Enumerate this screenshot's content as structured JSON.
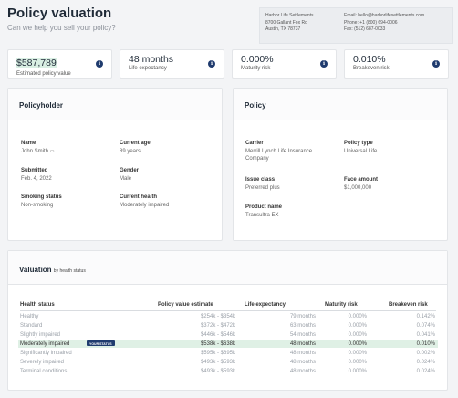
{
  "header": {
    "title": "Policy valuation",
    "subtitle": "Can we help you sell your policy?"
  },
  "contact": {
    "company": "Harbor Life Settlements",
    "address1": "8700 Gallant Fox Rd",
    "address2": "Austin, TX 78737",
    "email": "Email: hello@harborlifesettlements.com",
    "phone": "Phone: +1 (800) 694-0006",
    "fax": "Fax: (512) 687-0033"
  },
  "kpis": [
    {
      "value": "$587,789",
      "label": "Estimated policy value",
      "icon": "info-icon"
    },
    {
      "value": "48 months",
      "label": "Life expectancy",
      "icon": "info-icon"
    },
    {
      "value": "0.000%",
      "label": "Maturity risk",
      "icon": "info-icon"
    },
    {
      "value": "0.010%",
      "label": "Breakeven risk",
      "icon": "info-icon"
    }
  ],
  "policyholder": {
    "heading": "Policyholder",
    "name_label": "Name",
    "name_value": "John Smith",
    "age_label": "Current age",
    "age_value": "89 years",
    "submitted_label": "Submitted",
    "submitted_value": "Feb. 4, 2022",
    "gender_label": "Gender",
    "gender_value": "Male",
    "smoking_label": "Smoking status",
    "smoking_value": "Non-smoking",
    "health_label": "Current health",
    "health_value": "Moderately impaired"
  },
  "policy": {
    "heading": "Policy",
    "carrier_label": "Carrier",
    "carrier_value": "Merrill Lynch Life Insurance Company",
    "type_label": "Policy type",
    "type_value": "Universal Life",
    "issue_label": "Issue class",
    "issue_value": "Preferred plus",
    "face_label": "Face amount",
    "face_value": "$1,000,000",
    "product_label": "Product name",
    "product_value": "Transultra EX"
  },
  "valuation": {
    "heading": "Valuation",
    "heading_small": "by health status",
    "columns": [
      "Health status",
      "Policy value estimate",
      "Life expectancy",
      "Maturity risk",
      "Breakeven risk"
    ],
    "your_status_badge": "YOUR STATUS",
    "rows": [
      {
        "status": "Healthy",
        "estimate": "$254k - $354k",
        "life": "79 months",
        "maturity": "0.000%",
        "breakeven": "0.142%"
      },
      {
        "status": "Standard",
        "estimate": "$372k - $472k",
        "life": "63 months",
        "maturity": "0.000%",
        "breakeven": "0.074%"
      },
      {
        "status": "Slightly impaired",
        "estimate": "$446k - $546k",
        "life": "54 months",
        "maturity": "0.000%",
        "breakeven": "0.041%"
      },
      {
        "status": "Moderately impaired",
        "estimate": "$538k - $638k",
        "life": "48 months",
        "maturity": "0.000%",
        "breakeven": "0.010%"
      },
      {
        "status": "Significantly impaired",
        "estimate": "$595k - $695k",
        "life": "48 months",
        "maturity": "0.000%",
        "breakeven": "0.002%"
      },
      {
        "status": "Severely impaired",
        "estimate": "$493k - $593k",
        "life": "48 months",
        "maturity": "0.000%",
        "breakeven": "0.024%"
      },
      {
        "status": "Terminal conditions",
        "estimate": "$493k - $593k",
        "life": "48 months",
        "maturity": "0.000%",
        "breakeven": "0.024%"
      }
    ]
  }
}
